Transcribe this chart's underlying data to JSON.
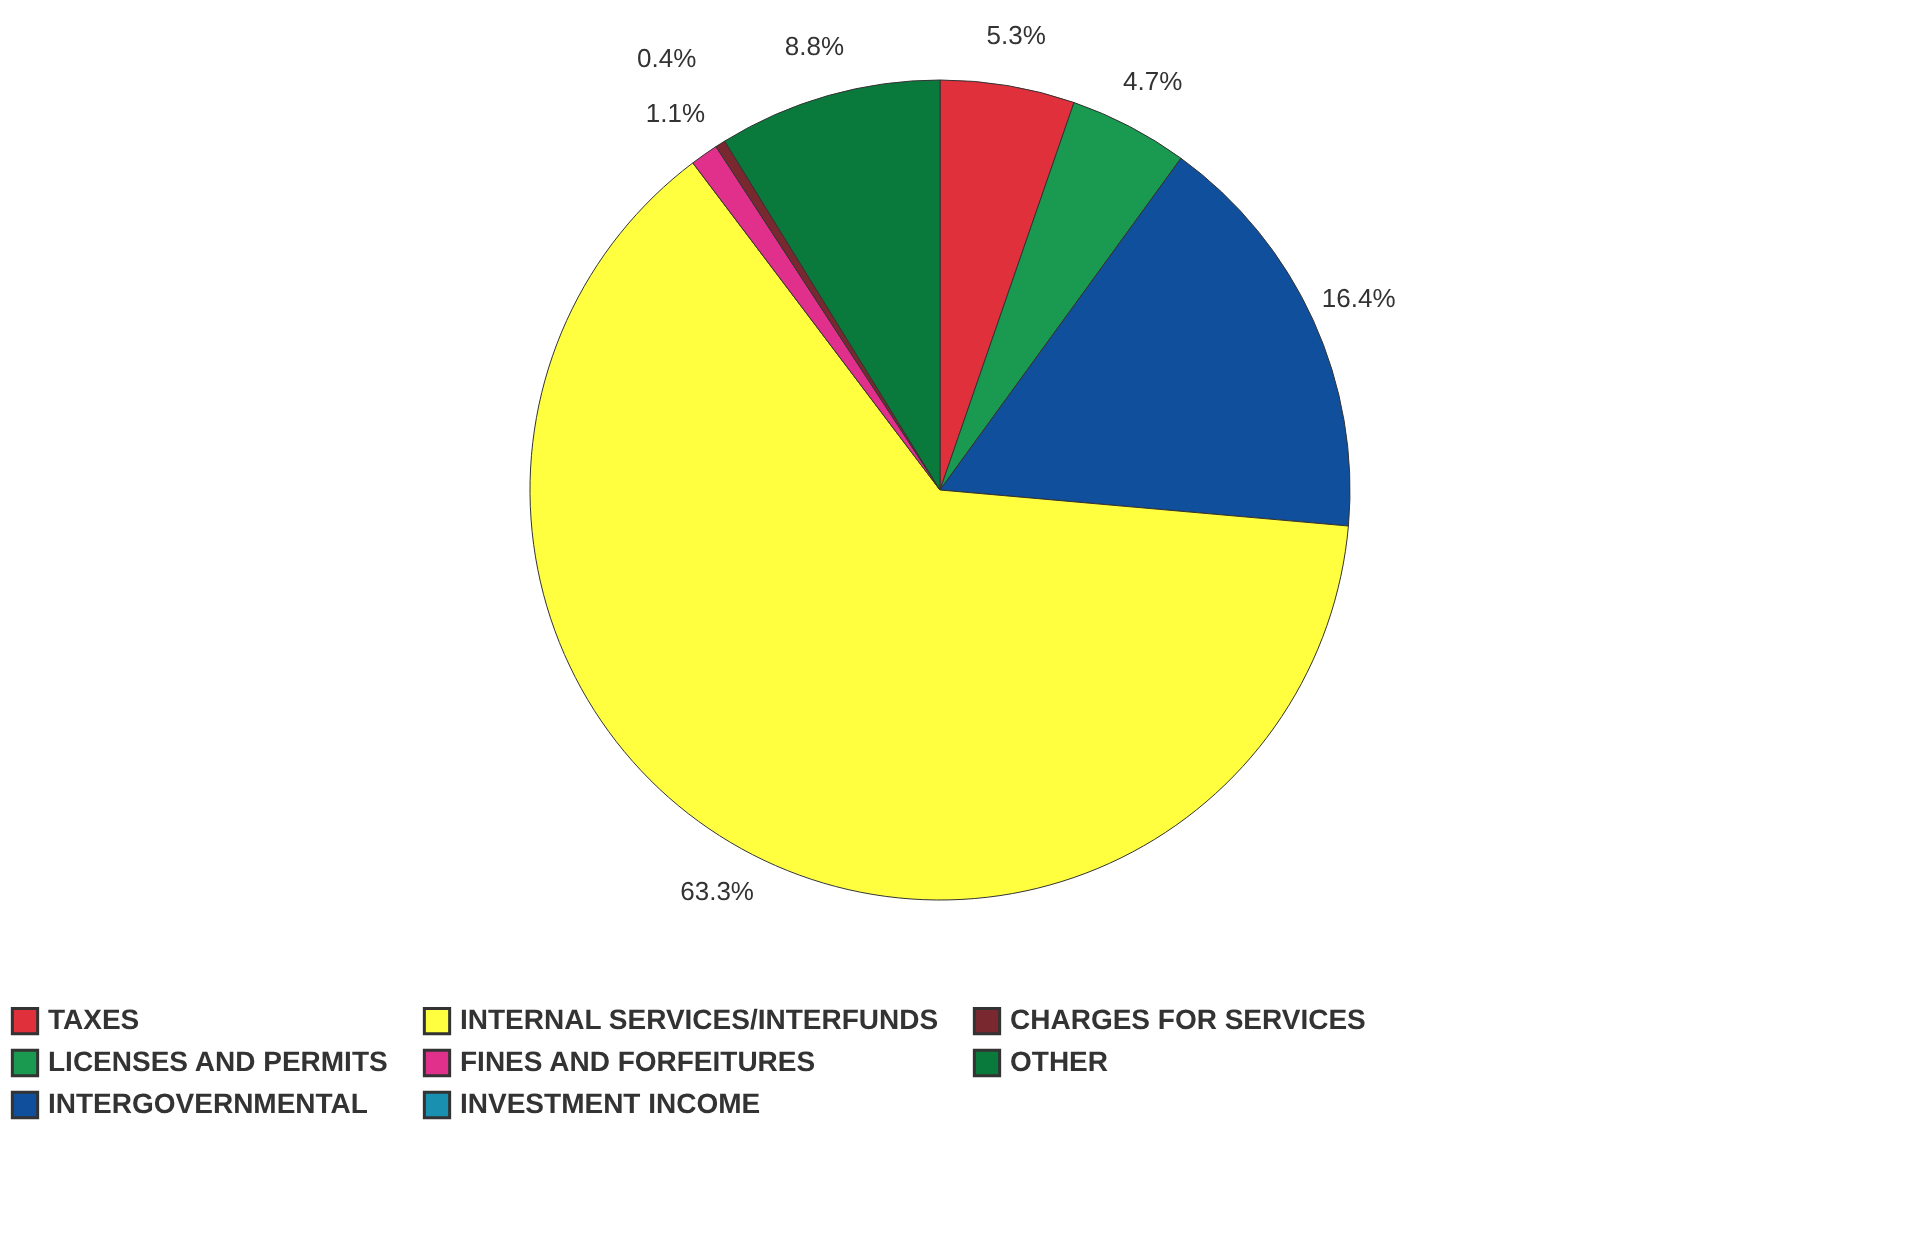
{
  "chart_data": {
    "type": "pie",
    "categories": [
      "TAXES",
      "LICENSES AND PERMITS",
      "INTERGOVERNMENTAL",
      "INTERNAL SERVICES/INTERFUNDS",
      "FINES AND FORFEITURES",
      "INVESTMENT INCOME",
      "CHARGES FOR SERVICES",
      "OTHER"
    ],
    "values": [
      5.3,
      4.7,
      16.4,
      63.3,
      1.1,
      0,
      0.4,
      8.8
    ],
    "value_labels": [
      "5.3%",
      "4.7%",
      "16.4%",
      "63.3%",
      "1.1%",
      null,
      "0.4%",
      "8.8%"
    ],
    "colors": [
      "#e0303c",
      "#1a9a50",
      "#0f4f9c",
      "#ffff40",
      "#e0308c",
      "#1a90b0",
      "#7a2830",
      "#0a7a3c"
    ],
    "legend": "bottom"
  }
}
